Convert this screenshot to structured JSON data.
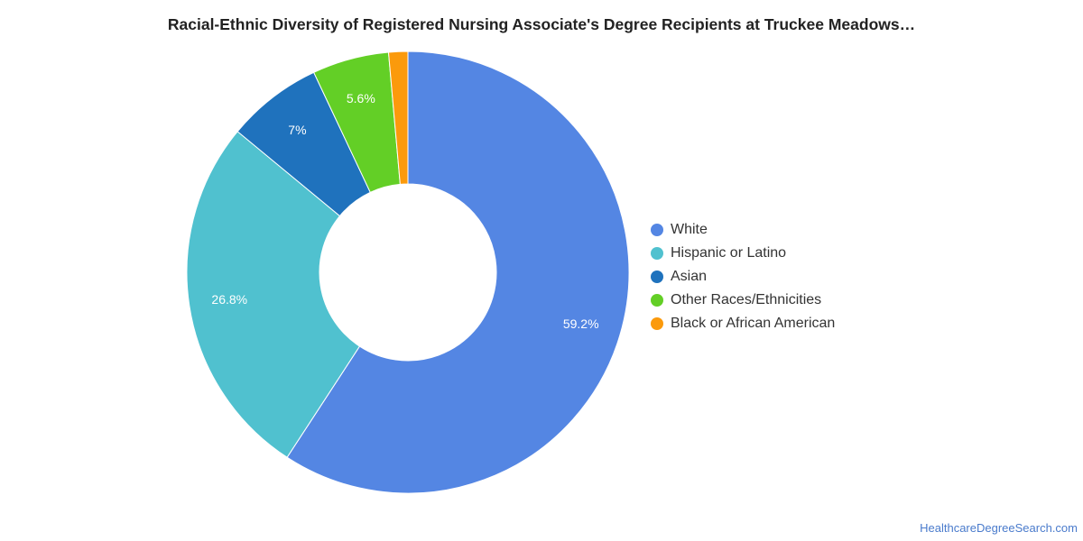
{
  "title": "Racial-Ethnic Diversity of Registered Nursing Associate's Degree Recipients at Truckee Meadows…",
  "source_link": "HealthcareDegreeSearch.com",
  "chart_data": {
    "type": "pie",
    "variant": "donut",
    "title": "Racial-Ethnic Diversity of Registered Nursing Associate's Degree Recipients at Truckee Meadows…",
    "legend_position": "right",
    "slices": [
      {
        "name": "White",
        "value": 59.2,
        "label": "59.2%",
        "color": "#5486e3"
      },
      {
        "name": "Hispanic or Latino",
        "value": 26.8,
        "label": "26.8%",
        "color": "#50c1cf"
      },
      {
        "name": "Asian",
        "value": 7.0,
        "label": "7%",
        "color": "#1f72bd"
      },
      {
        "name": "Other Races/Ethnicities",
        "value": 5.6,
        "label": "5.6%",
        "color": "#63cf26"
      },
      {
        "name": "Black or African American",
        "value": 1.4,
        "label": "",
        "color": "#fb9a0c"
      }
    ]
  }
}
